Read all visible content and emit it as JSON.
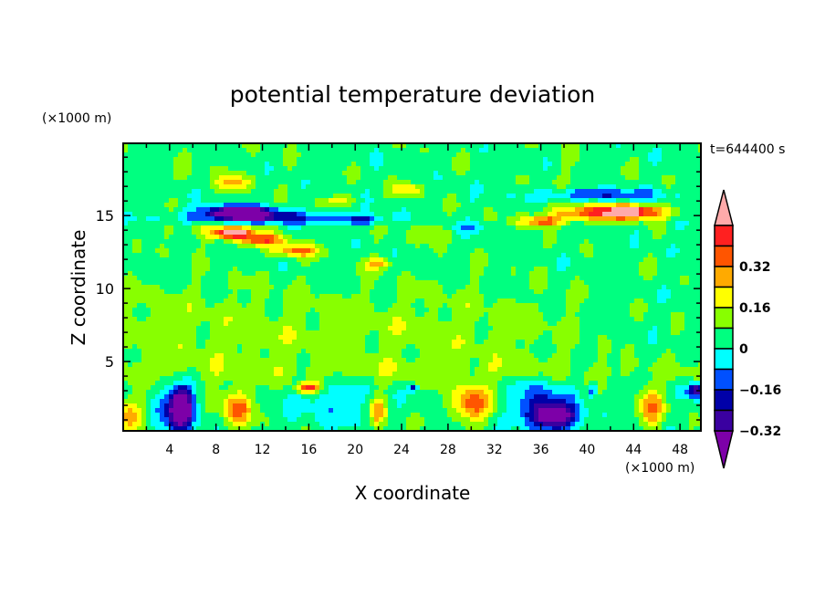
{
  "chart_data": {
    "type": "heatmap",
    "subtype": "filled-contour",
    "title": "potential temperature deviation",
    "xlabel": "X coordinate",
    "ylabel": "Z coordinate",
    "x_unit": "(×1000 m)",
    "y_unit": "(×1000 m)",
    "time_label": "t=644400 s",
    "xlim": [
      0,
      49.8
    ],
    "ylim": [
      0.25,
      19.95
    ],
    "x_ticks": [
      4,
      8,
      12,
      16,
      20,
      24,
      28,
      32,
      36,
      40,
      44,
      48
    ],
    "y_ticks": [
      5,
      10,
      15
    ],
    "colorbar": {
      "levels": [
        -0.4,
        -0.32,
        -0.24,
        -0.16,
        -0.08,
        0,
        0.08,
        0.16,
        0.24,
        0.32,
        0.4
      ],
      "tick_labels": [
        "0.32",
        "0.16",
        "0",
        "-0.16",
        "-0.32"
      ],
      "tick_values": [
        0.32,
        0.16,
        0,
        -0.16,
        -0.32
      ],
      "colors": [
        "#7d00a8",
        "#3a00a0",
        "#0000a8",
        "#0050ff",
        "#00ffff",
        "#00ff80",
        "#88ff00",
        "#ffff00",
        "#ffaa00",
        "#ff5500",
        "#ff2020",
        "#ffaaaa"
      ],
      "extend": "both"
    },
    "field_features": [
      {
        "x": 10,
        "z": 15.2,
        "sx": 3.0,
        "sz": 0.45,
        "amp": -0.5
      },
      {
        "x": 13,
        "z": 14.8,
        "sx": 8,
        "sz": 0.45,
        "amp": -0.22
      },
      {
        "x": 20.5,
        "z": 14.7,
        "sx": 1.5,
        "sz": 0.3,
        "amp": -0.18
      },
      {
        "x": 8.5,
        "z": 14.0,
        "sx": 5,
        "sz": 0.7,
        "amp": 0.1
      },
      {
        "x": 9.5,
        "z": 13.8,
        "sx": 1.6,
        "sz": 0.35,
        "amp": 0.45
      },
      {
        "x": 12,
        "z": 13.3,
        "sx": 2,
        "sz": 0.4,
        "amp": 0.3
      },
      {
        "x": 15,
        "z": 12.6,
        "sx": 1.8,
        "sz": 0.4,
        "amp": 0.3
      },
      {
        "x": 9.5,
        "z": 17.2,
        "sx": 1.4,
        "sz": 0.5,
        "amp": 0.2
      },
      {
        "x": 18.5,
        "z": 16.0,
        "sx": 1.4,
        "sz": 0.35,
        "amp": 0.18
      },
      {
        "x": 24.5,
        "z": 16.8,
        "sx": 1.2,
        "sz": 0.4,
        "amp": 0.2
      },
      {
        "x": 22,
        "z": 11.7,
        "sx": 1.2,
        "sz": 0.4,
        "amp": 0.2
      },
      {
        "x": 26.5,
        "z": 13.8,
        "sx": 2,
        "sz": 0.6,
        "amp": 0.1
      },
      {
        "x": 30,
        "z": 14.2,
        "sx": 2,
        "sz": 0.4,
        "amp": -0.1
      },
      {
        "x": 42,
        "z": 15.2,
        "sx": 4.5,
        "sz": 0.55,
        "amp": 0.42
      },
      {
        "x": 44,
        "z": 15.3,
        "sx": 1.8,
        "sz": 0.35,
        "amp": 0.2
      },
      {
        "x": 36,
        "z": 14.6,
        "sx": 2,
        "sz": 0.35,
        "amp": 0.3
      },
      {
        "x": 41,
        "z": 16.4,
        "sx": 5.5,
        "sz": 0.45,
        "amp": -0.22
      },
      {
        "x": 48,
        "z": 14.4,
        "sx": 1,
        "sz": 0.4,
        "amp": -0.1
      },
      {
        "x": 5,
        "z": 1.8,
        "sx": 0.9,
        "sz": 1.3,
        "amp": -0.5
      },
      {
        "x": 4.5,
        "z": 1.8,
        "sx": 2,
        "sz": 1.8,
        "amp": -0.18
      },
      {
        "x": 9.8,
        "z": 1.8,
        "sx": 1.3,
        "sz": 1.2,
        "amp": 0.32
      },
      {
        "x": 0.5,
        "z": 1.4,
        "sx": 1.2,
        "sz": 1.2,
        "amp": 0.22
      },
      {
        "x": 16,
        "z": 3.2,
        "sx": 1.0,
        "sz": 0.35,
        "amp": 0.42
      },
      {
        "x": 22,
        "z": 1.6,
        "sx": 0.7,
        "sz": 1.0,
        "amp": 0.25
      },
      {
        "x": 18,
        "z": 2.3,
        "sx": 3.5,
        "sz": 1.5,
        "amp": -0.12
      },
      {
        "x": 30,
        "z": 2.1,
        "sx": 1.6,
        "sz": 1.2,
        "amp": 0.32
      },
      {
        "x": 37,
        "z": 1.2,
        "sx": 2.2,
        "sz": 0.9,
        "amp": -0.45
      },
      {
        "x": 36,
        "z": 2.5,
        "sx": 2.5,
        "sz": 1.4,
        "amp": -0.18
      },
      {
        "x": 40.5,
        "z": 3.0,
        "sx": 0.3,
        "sz": 0.45,
        "amp": -0.3
      },
      {
        "x": 45.5,
        "z": 1.8,
        "sx": 1.1,
        "sz": 1.3,
        "amp": 0.25
      },
      {
        "x": 49.5,
        "z": 3.0,
        "sx": 0.8,
        "sz": 0.5,
        "amp": -0.38
      },
      {
        "x": 25,
        "z": 3.2,
        "sx": 0.4,
        "sz": 0.3,
        "amp": -0.25
      }
    ]
  }
}
